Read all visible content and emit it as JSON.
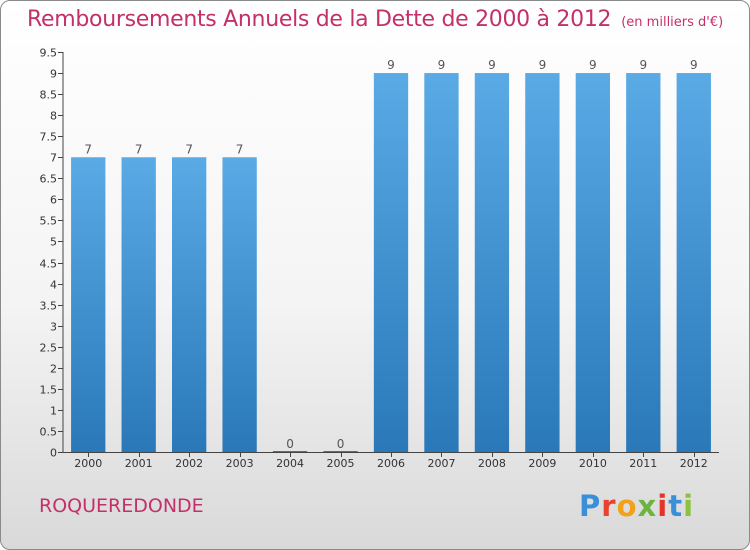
{
  "header": {
    "title": "Remboursements Annuels de la Dette de 2000 à 2012",
    "unit": "(en milliers d'€)"
  },
  "footer": {
    "commune": "ROQUEREDONDE",
    "logo_text": "Proxiti"
  },
  "colors": {
    "title": "#c4306a",
    "bar_top": "#5aaae6",
    "bar_bottom": "#2a78b8"
  },
  "chart_data": {
    "type": "bar",
    "title": "Remboursements Annuels de la Dette de 2000 à 2012",
    "xlabel": "",
    "ylabel": "",
    "ylim": [
      0,
      9.5
    ],
    "yticks": [
      "0",
      "0.5",
      "1",
      "1.5",
      "2",
      "2.5",
      "3",
      "3.5",
      "4",
      "4.5",
      "5",
      "5.5",
      "6",
      "6.5",
      "7",
      "7.5",
      "8",
      "8.5",
      "9",
      "9.5"
    ],
    "categories": [
      "2000",
      "2001",
      "2002",
      "2003",
      "2004",
      "2005",
      "2006",
      "2007",
      "2008",
      "2009",
      "2010",
      "2011",
      "2012"
    ],
    "values": [
      7,
      7,
      7,
      7,
      0,
      0,
      9,
      9,
      9,
      9,
      9,
      9,
      9
    ],
    "data_labels": [
      "7",
      "7",
      "7",
      "7",
      "0",
      "0",
      "9",
      "9",
      "9",
      "9",
      "9",
      "9",
      "9"
    ],
    "grid": false,
    "legend": "none"
  }
}
